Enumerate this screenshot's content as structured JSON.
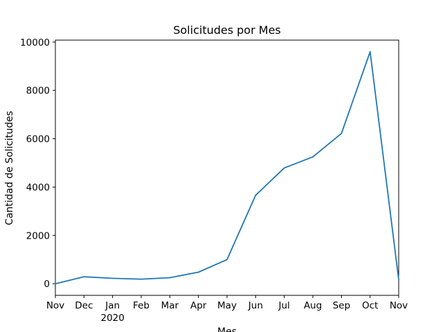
{
  "chart_data": {
    "type": "line",
    "title": "Solicitudes por Mes",
    "xlabel": "Mes",
    "ylabel": "Cantidad de Solicitudes",
    "categories": [
      "Nov",
      "Dec",
      "Jan",
      "Feb",
      "Mar",
      "Apr",
      "May",
      "Jun",
      "Jul",
      "Aug",
      "Sep",
      "Oct",
      "Nov"
    ],
    "year_labels": [
      {
        "index": 2,
        "text": "2020"
      }
    ],
    "series": [
      {
        "name": "Solicitudes",
        "color": "#1f77b4",
        "values": [
          0,
          290,
          225,
          190,
          250,
          480,
          1000,
          3660,
          4790,
          5250,
          6220,
          9600,
          170
        ]
      }
    ],
    "yticks": [
      0,
      2000,
      4000,
      6000,
      8000,
      10000
    ],
    "ylim": [
      -480,
      10080
    ],
    "grid": false,
    "legend": "none"
  }
}
